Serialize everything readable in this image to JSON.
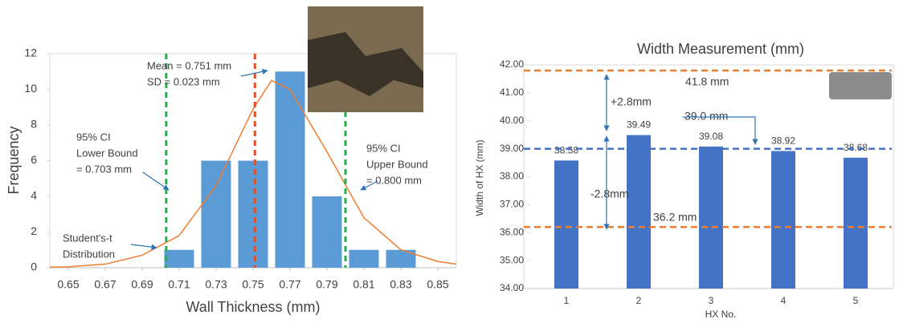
{
  "chart_data": [
    {
      "type": "bar",
      "x_title": "Wall Thickness (mm)",
      "y_title": "Frequency",
      "x": [
        0.71,
        0.73,
        0.75,
        0.77,
        0.79,
        0.81,
        0.83
      ],
      "values": [
        1,
        6,
        6,
        11,
        4,
        1,
        1
      ],
      "color": "#5b9bd5",
      "xlim": [
        0.64,
        0.86
      ],
      "xticks": [
        0.65,
        0.67,
        0.69,
        0.71,
        0.73,
        0.75,
        0.77,
        0.79,
        0.81,
        0.83,
        0.85
      ],
      "ylim": [
        0,
        12
      ],
      "yticks": [
        0,
        2,
        4,
        6,
        8,
        10,
        12
      ],
      "grid": false,
      "curve": {
        "color": "#ed7d31",
        "x": [
          0.64,
          0.65,
          0.67,
          0.69,
          0.71,
          0.73,
          0.75,
          0.76,
          0.77,
          0.79,
          0.81,
          0.83,
          0.85,
          0.86
        ],
        "values": [
          0.03,
          0.05,
          0.2,
          0.7,
          1.8,
          4.6,
          8.9,
          10.5,
          10.0,
          6.5,
          2.8,
          1.0,
          0.35,
          0.2
        ]
      },
      "reference_lines": [
        {
          "x": 0.703,
          "color": "#22b04c"
        },
        {
          "x": 0.751,
          "color": "#e0502a"
        },
        {
          "x": 0.8,
          "color": "#22b04c"
        }
      ],
      "annotations": [
        "Mean = 0.751 mm",
        "SD = 0.023 mm",
        "95% CI",
        "Lower Bound",
        "= 0.703 mm",
        "95% CI",
        "Upper Bound",
        "= 0.800 mm",
        "Student's-t",
        "Distribution"
      ]
    },
    {
      "type": "bar",
      "title": "Width Measurement (mm)",
      "x_title": "HX No.",
      "y_title": "Width of HX (mm)",
      "categories": [
        "1",
        "2",
        "3",
        "4",
        "5"
      ],
      "values": [
        38.58,
        39.49,
        39.08,
        38.92,
        38.68
      ],
      "color": "#4472c4",
      "ylim": [
        34,
        42
      ],
      "yticks": [
        {
          "value": 34,
          "label": "34.00"
        },
        {
          "value": 35,
          "label": "35.00"
        },
        {
          "value": 36,
          "label": "36.00"
        },
        {
          "value": 37,
          "label": "37.00"
        },
        {
          "value": 38,
          "label": "38.00"
        },
        {
          "value": 39,
          "label": "39.00"
        },
        {
          "value": 40,
          "label": "40.00"
        },
        {
          "value": 41,
          "label": "41.00"
        },
        {
          "value": 42,
          "label": "42.00"
        }
      ],
      "grid": false,
      "reference_lines": [
        {
          "y": 41.8,
          "color": "#ed7d31"
        },
        {
          "y": 39.0,
          "color": "#4472c4"
        },
        {
          "y": 36.2,
          "color": "#ed7d31"
        }
      ],
      "annotations": [
        "41.8 mm",
        "39.0 mm",
        "36.2 mm",
        "+2.8mm",
        "-2.8mm"
      ]
    }
  ]
}
